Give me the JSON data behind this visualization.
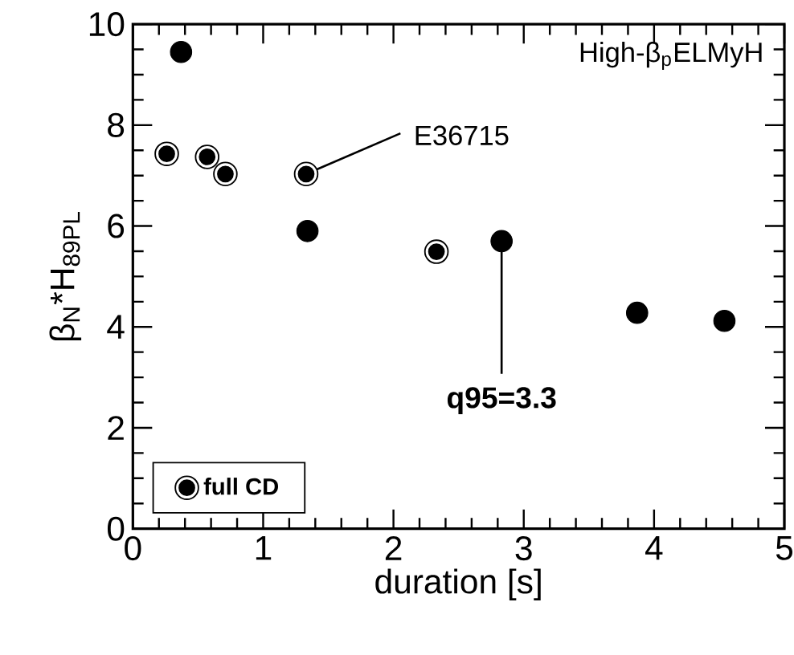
{
  "chart_data": {
    "type": "scatter",
    "xlabel": "duration [s]",
    "ylabel": "β$_{N}$*H$_{89PL}$",
    "series": [
      {
        "name": "full CD",
        "color": "#000000",
        "x": [
          0.26,
          0.57,
          0.71,
          1.33,
          2.33
        ],
        "values": [
          7.43,
          7.37,
          7.03,
          7.03,
          5.49
        ]
      },
      {
        "color": "#000000",
        "x": [
          0.37,
          1.34,
          2.83,
          3.87,
          4.54
        ],
        "values": [
          9.45,
          5.9,
          5.7,
          4.28,
          4.12
        ]
      }
    ],
    "xlim": [
      0,
      5
    ],
    "ylim": [
      0,
      10
    ],
    "xticks": [
      0,
      1,
      2,
      3,
      4,
      5
    ],
    "yticks": [
      0,
      2,
      4,
      6,
      8,
      10
    ],
    "marker": "circle",
    "legend": "bottom left",
    "annotations": [
      "High-β$_{p}$ELMyH",
      {
        "text": "E36715",
        "x": 1.33,
        "y": 7.03
      },
      {
        "text": "q95=3.3",
        "x": 2.83,
        "y": 5.7
      }
    ]
  }
}
